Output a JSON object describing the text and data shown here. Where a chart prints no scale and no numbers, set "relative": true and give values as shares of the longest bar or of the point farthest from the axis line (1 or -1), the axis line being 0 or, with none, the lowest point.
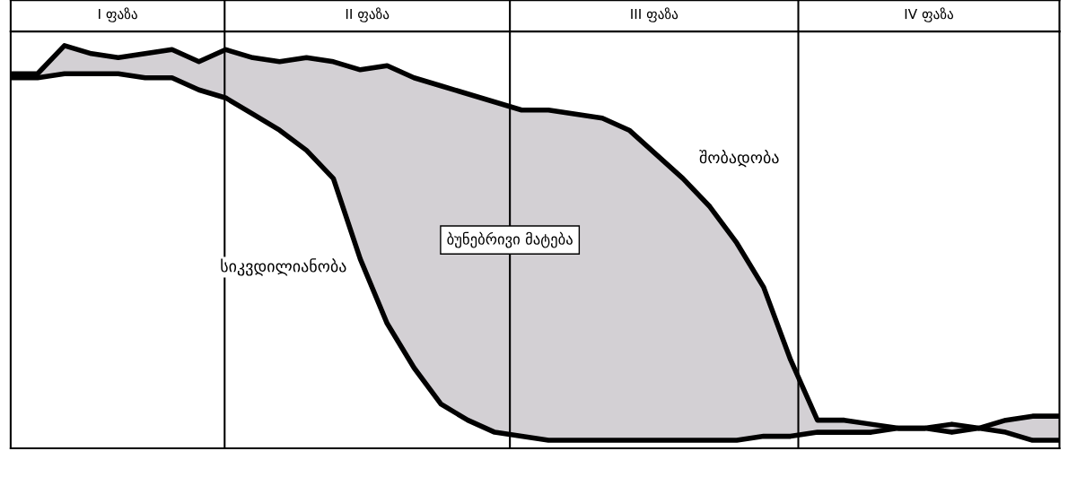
{
  "chart_data": {
    "type": "line",
    "relative": true,
    "tick_labels": false,
    "categories": [
      null,
      null,
      null,
      null,
      null,
      null,
      null,
      null,
      null,
      null,
      null,
      null,
      null,
      null,
      null,
      null,
      null,
      null,
      null,
      null,
      null,
      null,
      null,
      null,
      null,
      null,
      null,
      null,
      null,
      null,
      null,
      null,
      null,
      null,
      null,
      null,
      null,
      null,
      null,
      null
    ],
    "series": [
      {
        "name": "შობადობა",
        "color": "#000000",
        "values": [
          0.93,
          0.93,
          1.0,
          0.98,
          0.97,
          0.98,
          0.99,
          0.96,
          0.99,
          0.97,
          0.96,
          0.97,
          0.96,
          0.94,
          0.95,
          0.92,
          0.9,
          0.88,
          0.86,
          0.84,
          0.84,
          0.83,
          0.82,
          0.79,
          0.73,
          0.67,
          0.6,
          0.51,
          0.4,
          0.22,
          0.07,
          0.07,
          0.06,
          0.05,
          0.05,
          0.04,
          0.05,
          0.04,
          0.02,
          0.02
        ]
      },
      {
        "name": "სიკვდილიანობა",
        "color": "#000000",
        "values": [
          0.92,
          0.92,
          0.93,
          0.93,
          0.93,
          0.92,
          0.92,
          0.89,
          0.87,
          0.83,
          0.79,
          0.74,
          0.67,
          0.47,
          0.31,
          0.2,
          0.11,
          0.07,
          0.04,
          0.03,
          0.02,
          0.02,
          0.02,
          0.02,
          0.02,
          0.02,
          0.02,
          0.02,
          0.03,
          0.03,
          0.04,
          0.04,
          0.04,
          0.05,
          0.05,
          0.06,
          0.05,
          0.07,
          0.08,
          0.08
        ]
      }
    ],
    "annotations": [
      "I ფაზა",
      "II ფაზა",
      "III ფაზა",
      "IV ფაზა",
      "ბუნებრივი მატება"
    ]
  }
}
